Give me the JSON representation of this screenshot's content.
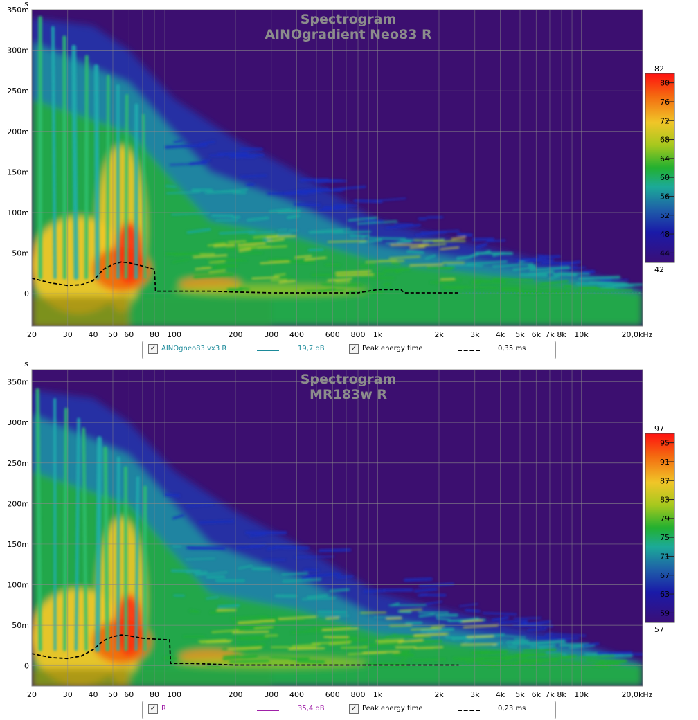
{
  "chart_data": [
    {
      "type": "heatmap",
      "title": "Spectrogram",
      "subtitle": "AINOgradient Neo83 R",
      "xlabel": "",
      "ylabel": "s",
      "x_scale": "log",
      "xlim": [
        20,
        20000
      ],
      "ylim": [
        -0.04,
        0.35
      ],
      "x_ticks": [
        {
          "v": 20,
          "label": "20"
        },
        {
          "v": 30,
          "label": "30"
        },
        {
          "v": 40,
          "label": "40"
        },
        {
          "v": 50,
          "label": "50"
        },
        {
          "v": 60,
          "label": "60"
        },
        {
          "v": 80,
          "label": "80"
        },
        {
          "v": 100,
          "label": "100"
        },
        {
          "v": 200,
          "label": "200"
        },
        {
          "v": 300,
          "label": "300"
        },
        {
          "v": 400,
          "label": "400"
        },
        {
          "v": 600,
          "label": "600"
        },
        {
          "v": 800,
          "label": "800"
        },
        {
          "v": 1000,
          "label": "1k"
        },
        {
          "v": 2000,
          "label": "2k"
        },
        {
          "v": 3000,
          "label": "3k"
        },
        {
          "v": 4000,
          "label": "4k"
        },
        {
          "v": 5000,
          "label": "5k"
        },
        {
          "v": 6000,
          "label": "6k"
        },
        {
          "v": 7000,
          "label": "7k"
        },
        {
          "v": 8000,
          "label": "8k"
        },
        {
          "v": 10000,
          "label": "10k"
        },
        {
          "v": 20000,
          "label": "20,0kHz"
        }
      ],
      "y_ticks": [
        {
          "v": 0.35,
          "label": "350m"
        },
        {
          "v": 0.3,
          "label": "300m"
        },
        {
          "v": 0.25,
          "label": "250m"
        },
        {
          "v": 0.2,
          "label": "200m"
        },
        {
          "v": 0.15,
          "label": "150m"
        },
        {
          "v": 0.1,
          "label": "100m"
        },
        {
          "v": 0.05,
          "label": "50m"
        },
        {
          "v": 0,
          "label": "0"
        }
      ],
      "colorbar": {
        "min": 42,
        "max": 82,
        "min_label": "42",
        "max_label": "82",
        "ticks": [
          "80",
          "76",
          "72",
          "68",
          "64",
          "60",
          "56",
          "52",
          "48",
          "44"
        ]
      },
      "peak_energy_time": {
        "x": [
          20,
          25,
          30,
          35,
          40,
          45,
          50,
          55,
          60,
          70,
          80,
          81,
          100,
          150,
          200,
          300,
          500,
          800,
          1000,
          1300,
          1350,
          20000
        ],
        "y": [
          0.019,
          0.013,
          0.01,
          0.011,
          0.016,
          0.03,
          0.036,
          0.039,
          0.038,
          0.034,
          0.03,
          0.003,
          0.003,
          0.003,
          0.002,
          0.001,
          0.001,
          0.001,
          0.005,
          0.005,
          0.001,
          0.001
        ]
      },
      "legend": {
        "series_label": "AINOgneo83 vx3 R",
        "series_color": "#1c8a9a",
        "series_value": "19,7 dB",
        "peak_label": "Peak energy time",
        "peak_value": "0,35 ms"
      }
    },
    {
      "type": "heatmap",
      "title": "Spectrogram",
      "subtitle": "MR183w R",
      "xlabel": "",
      "ylabel": "s",
      "x_scale": "log",
      "xlim": [
        20,
        20000
      ],
      "ylim": [
        -0.025,
        0.365
      ],
      "x_ticks": [
        {
          "v": 20,
          "label": "20"
        },
        {
          "v": 30,
          "label": "30"
        },
        {
          "v": 40,
          "label": "40"
        },
        {
          "v": 50,
          "label": "50"
        },
        {
          "v": 60,
          "label": "60"
        },
        {
          "v": 80,
          "label": "80"
        },
        {
          "v": 100,
          "label": "100"
        },
        {
          "v": 200,
          "label": "200"
        },
        {
          "v": 300,
          "label": "300"
        },
        {
          "v": 400,
          "label": "400"
        },
        {
          "v": 600,
          "label": "600"
        },
        {
          "v": 800,
          "label": "800"
        },
        {
          "v": 1000,
          "label": "1k"
        },
        {
          "v": 2000,
          "label": "2k"
        },
        {
          "v": 3000,
          "label": "3k"
        },
        {
          "v": 4000,
          "label": "4k"
        },
        {
          "v": 5000,
          "label": "5k"
        },
        {
          "v": 6000,
          "label": "6k"
        },
        {
          "v": 7000,
          "label": "7k"
        },
        {
          "v": 8000,
          "label": "8k"
        },
        {
          "v": 10000,
          "label": "10k"
        },
        {
          "v": 20000,
          "label": "20,0kHz"
        }
      ],
      "y_ticks": [
        {
          "v": 0.35,
          "label": "350m"
        },
        {
          "v": 0.3,
          "label": "300m"
        },
        {
          "v": 0.25,
          "label": "250m"
        },
        {
          "v": 0.2,
          "label": "200m"
        },
        {
          "v": 0.15,
          "label": "150m"
        },
        {
          "v": 0.1,
          "label": "100m"
        },
        {
          "v": 0.05,
          "label": "50m"
        },
        {
          "v": 0,
          "label": "0"
        }
      ],
      "colorbar": {
        "min": 57,
        "max": 97,
        "min_label": "57",
        "max_label": "97",
        "ticks": [
          "95",
          "91",
          "87",
          "83",
          "79",
          "75",
          "71",
          "67",
          "63",
          "59"
        ]
      },
      "peak_energy_time": {
        "x": [
          20,
          25,
          30,
          35,
          40,
          45,
          50,
          55,
          60,
          70,
          80,
          95,
          96,
          120,
          200,
          300,
          500,
          1000,
          20000
        ],
        "y": [
          0.015,
          0.01,
          0.009,
          0.012,
          0.02,
          0.031,
          0.036,
          0.038,
          0.037,
          0.034,
          0.033,
          0.032,
          0.003,
          0.003,
          0.001,
          0.001,
          0.001,
          0.001,
          0.001
        ]
      },
      "legend": {
        "series_label": "R",
        "series_color": "#a020a8",
        "series_value": "35,4 dB",
        "peak_label": "Peak energy time",
        "peak_value": "0,23 ms"
      }
    }
  ]
}
